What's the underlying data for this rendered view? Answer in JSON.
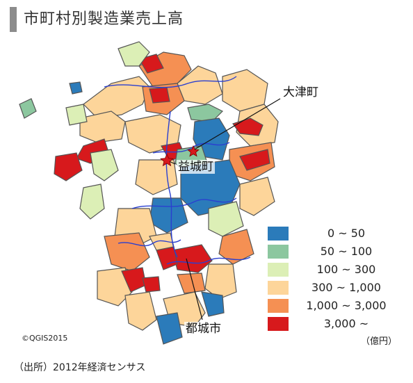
{
  "title": "市町村別製造業売上高",
  "callouts": {
    "otsu": "大津町",
    "mashiki": "益城町",
    "miyakonojo": "都城市"
  },
  "legend": {
    "items": [
      {
        "label": "0 ~ 50",
        "color": "#2b7bba"
      },
      {
        "label": "50 ~ 100",
        "color": "#8cc79f"
      },
      {
        "label": "100 ~ 300",
        "color": "#dcefb6"
      },
      {
        "label": "300 ~ 1,000",
        "color": "#fdd59a"
      },
      {
        "label": "1,000 ~ 3,000",
        "color": "#f59053"
      },
      {
        "label": "3,000 ~",
        "color": "#d7191c"
      }
    ]
  },
  "unit": "（億円）",
  "credit": "©QGIS2015",
  "source": "（出所）2012年経済センサス",
  "colors": {
    "river": "#2a3fd0",
    "border": "#555555",
    "marker": "#d7191c"
  }
}
